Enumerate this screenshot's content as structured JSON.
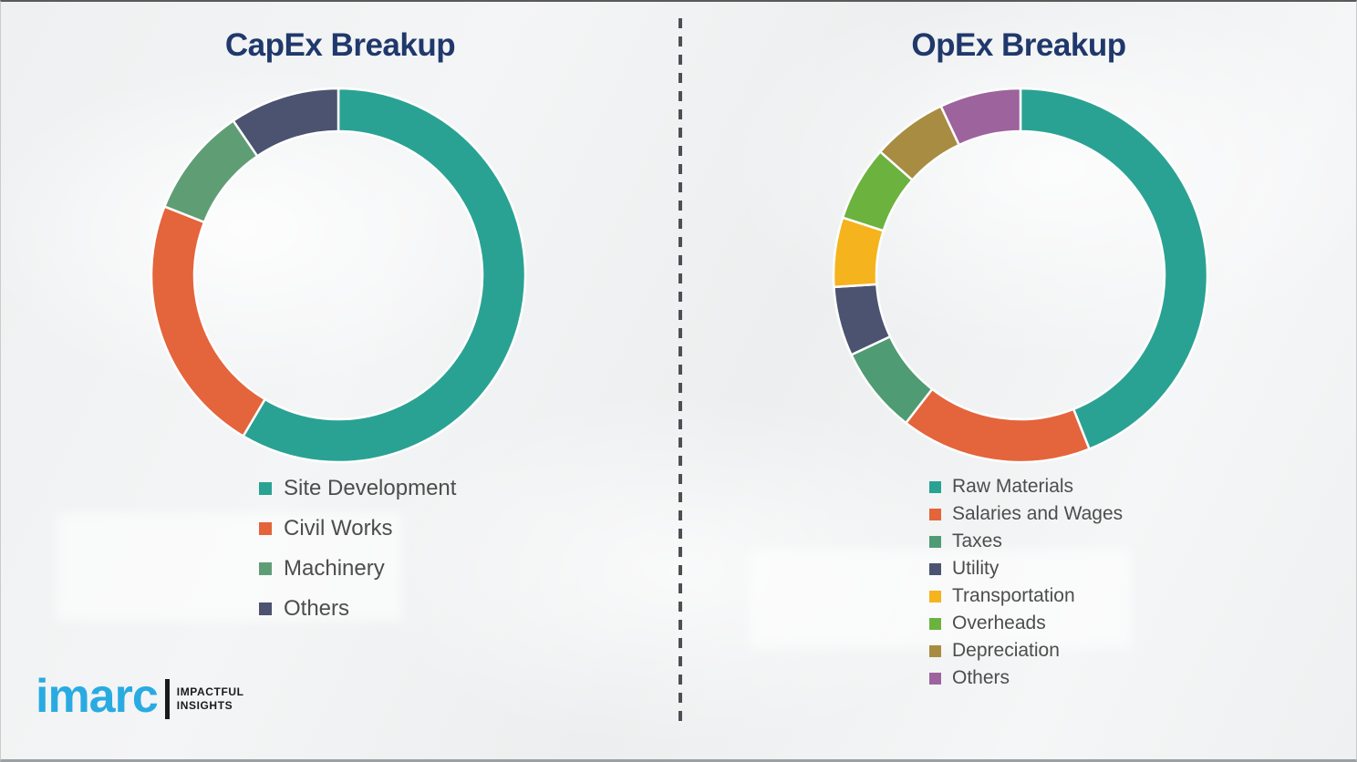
{
  "page": {
    "background_color": "#f1f2f3",
    "divider_style": "vertical-dashed",
    "divider_color": "#4d4f52"
  },
  "chart_data": [
    {
      "type": "pie",
      "subtype": "donut",
      "title": "CapEx Breakup",
      "labels": [
        "Site Development",
        "Civil Works",
        "Machinery",
        "Others"
      ],
      "values": [
        58.5,
        22.5,
        9.5,
        9.5
      ],
      "colors": [
        "#2aa293",
        "#e4643c",
        "#5f9e75",
        "#4b5370"
      ],
      "start_angle_deg": 0,
      "direction": "clockwise",
      "outer_radius": 205,
      "inner_radius": 158,
      "segment_gap_color": "#ffffff",
      "legend_position": "below-left",
      "data_labels_shown": false
    },
    {
      "type": "pie",
      "subtype": "donut",
      "title": "OpEx Breakup",
      "labels": [
        "Raw Materials",
        "Salaries and Wages",
        "Taxes",
        "Utility",
        "Transportation",
        "Overheads",
        "Depreciation",
        "Others"
      ],
      "values": [
        44,
        16.5,
        7.5,
        6,
        6,
        6.5,
        6.5,
        7
      ],
      "colors": [
        "#2aa293",
        "#e4643c",
        "#4f9b74",
        "#4b5370",
        "#f5b31e",
        "#6cb23e",
        "#a78c42",
        "#9d639d"
      ],
      "start_angle_deg": 0,
      "direction": "clockwise",
      "outer_radius": 205,
      "inner_radius": 158,
      "segment_gap_color": "#ffffff",
      "legend_position": "below-left",
      "data_labels_shown": false
    }
  ],
  "titles_color": "#20386b",
  "legend_text_color": "#4d4d4d",
  "brand": {
    "logo_text": "imarc",
    "logo_color": "#29abe2",
    "tagline_line1": "IMPACTFUL",
    "tagline_line2": "INSIGHTS"
  }
}
